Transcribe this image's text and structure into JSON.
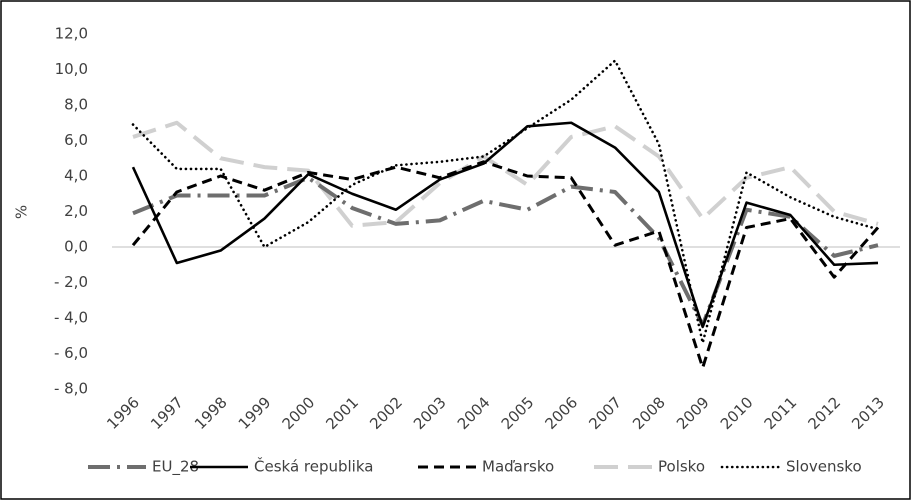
{
  "chart_data": {
    "type": "line",
    "y_label": "%",
    "x": [
      "1996",
      "1997",
      "1998",
      "1999",
      "2000",
      "2001",
      "2002",
      "2003",
      "2004",
      "2005",
      "2006",
      "2007",
      "2008",
      "2009",
      "2010",
      "2011",
      "2012",
      "2013"
    ],
    "ylim": [
      -8,
      12
    ],
    "yticks": [
      {
        "value": -8,
        "label": "- 8,0"
      },
      {
        "value": -6,
        "label": "- 6,0"
      },
      {
        "value": -4,
        "label": "- 4,0"
      },
      {
        "value": -2,
        "label": "- 2,0"
      },
      {
        "value": 0,
        "label": "0,0"
      },
      {
        "value": 2,
        "label": "2,0"
      },
      {
        "value": 4,
        "label": "4,0"
      },
      {
        "value": 6,
        "label": "6,0"
      },
      {
        "value": 8,
        "label": "8,0"
      },
      {
        "value": 10,
        "label": "10,0"
      },
      {
        "value": 12,
        "label": "12,0"
      }
    ],
    "legend": "bottom",
    "series": [
      {
        "name": "EU_28",
        "color": "#6e6e6e",
        "values": [
          1.9,
          2.9,
          2.9,
          2.9,
          3.9,
          2.2,
          1.3,
          1.5,
          2.6,
          2.1,
          3.4,
          3.1,
          0.5,
          -4.4,
          2.1,
          1.7,
          -0.5,
          0.1
        ]
      },
      {
        "name": "Česká republika",
        "color": "#000000",
        "values": [
          4.5,
          -0.9,
          -0.2,
          1.6,
          4.1,
          3.0,
          2.1,
          3.8,
          4.7,
          6.8,
          7.0,
          5.6,
          3.1,
          -4.5,
          2.5,
          1.8,
          -1.0,
          -0.9
        ]
      },
      {
        "name": "Maďarsko",
        "color": "#000000",
        "values": [
          0.1,
          3.1,
          4.0,
          3.2,
          4.2,
          3.8,
          4.5,
          3.9,
          4.8,
          4.0,
          3.9,
          0.1,
          0.9,
          -6.8,
          1.1,
          1.6,
          -1.7,
          1.1
        ]
      },
      {
        "name": "Polsko",
        "color": "#d0d0d0",
        "values": [
          6.2,
          7.0,
          5.0,
          4.5,
          4.3,
          1.2,
          1.4,
          3.6,
          5.1,
          3.5,
          6.2,
          6.8,
          5.1,
          1.6,
          3.9,
          4.5,
          2.0,
          1.3
        ]
      },
      {
        "name": "Slovensko",
        "color": "#000000",
        "values": [
          6.9,
          4.4,
          4.4,
          0.0,
          1.4,
          3.5,
          4.6,
          4.8,
          5.1,
          6.7,
          8.3,
          10.5,
          5.8,
          -5.4,
          4.2,
          2.8,
          1.7,
          1.0
        ]
      }
    ]
  }
}
